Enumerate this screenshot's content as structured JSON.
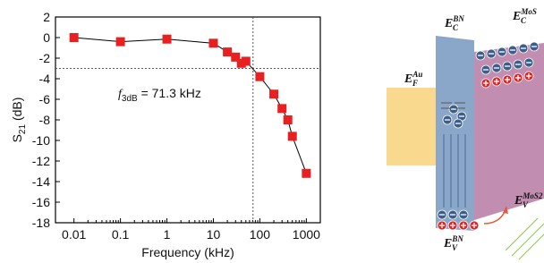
{
  "chart_data": {
    "type": "line",
    "x": [
      0.01,
      0.1,
      1,
      10,
      20,
      30,
      40,
      50,
      100,
      200,
      300,
      400,
      500,
      1000
    ],
    "series": [
      {
        "color": "#e8201f",
        "values": [
          0,
          -0.4,
          -0.15,
          -0.55,
          -1.4,
          -1.9,
          -2.5,
          -2.3,
          -3.8,
          -5.5,
          -6.9,
          -8.0,
          -9.6,
          -13.2
        ]
      }
    ],
    "xlabel": "Frequency (kHz)",
    "ylabel": "S",
    "ylabel_sub": "21",
    "ylabel_rest": " (dB)",
    "xscale": "log",
    "xlim": [
      0.004,
      2000
    ],
    "xticks": [
      0.01,
      0.1,
      1,
      10,
      100,
      1000
    ],
    "ylim": [
      -18,
      2
    ],
    "yticks": [
      2,
      0,
      -2,
      -4,
      -6,
      -8,
      -10,
      -12,
      -14,
      -16,
      -18
    ],
    "ref_x": 71.3,
    "ref_y": -3,
    "annotation": {
      "symbol": "f",
      "subscript": "3dB",
      "text": " = 71.3 kHz"
    }
  },
  "diagram": {
    "labels": [
      {
        "main": "E",
        "sub": "C",
        "sup": "BN"
      },
      {
        "main": "E",
        "sub": "C",
        "sup": "MoS"
      },
      {
        "main": "E",
        "sub": "F",
        "sup": "Au"
      },
      {
        "main": "E",
        "sub": "V",
        "sup": "MoS2"
      },
      {
        "main": "E",
        "sub": "V",
        "sup": "BN"
      }
    ]
  }
}
